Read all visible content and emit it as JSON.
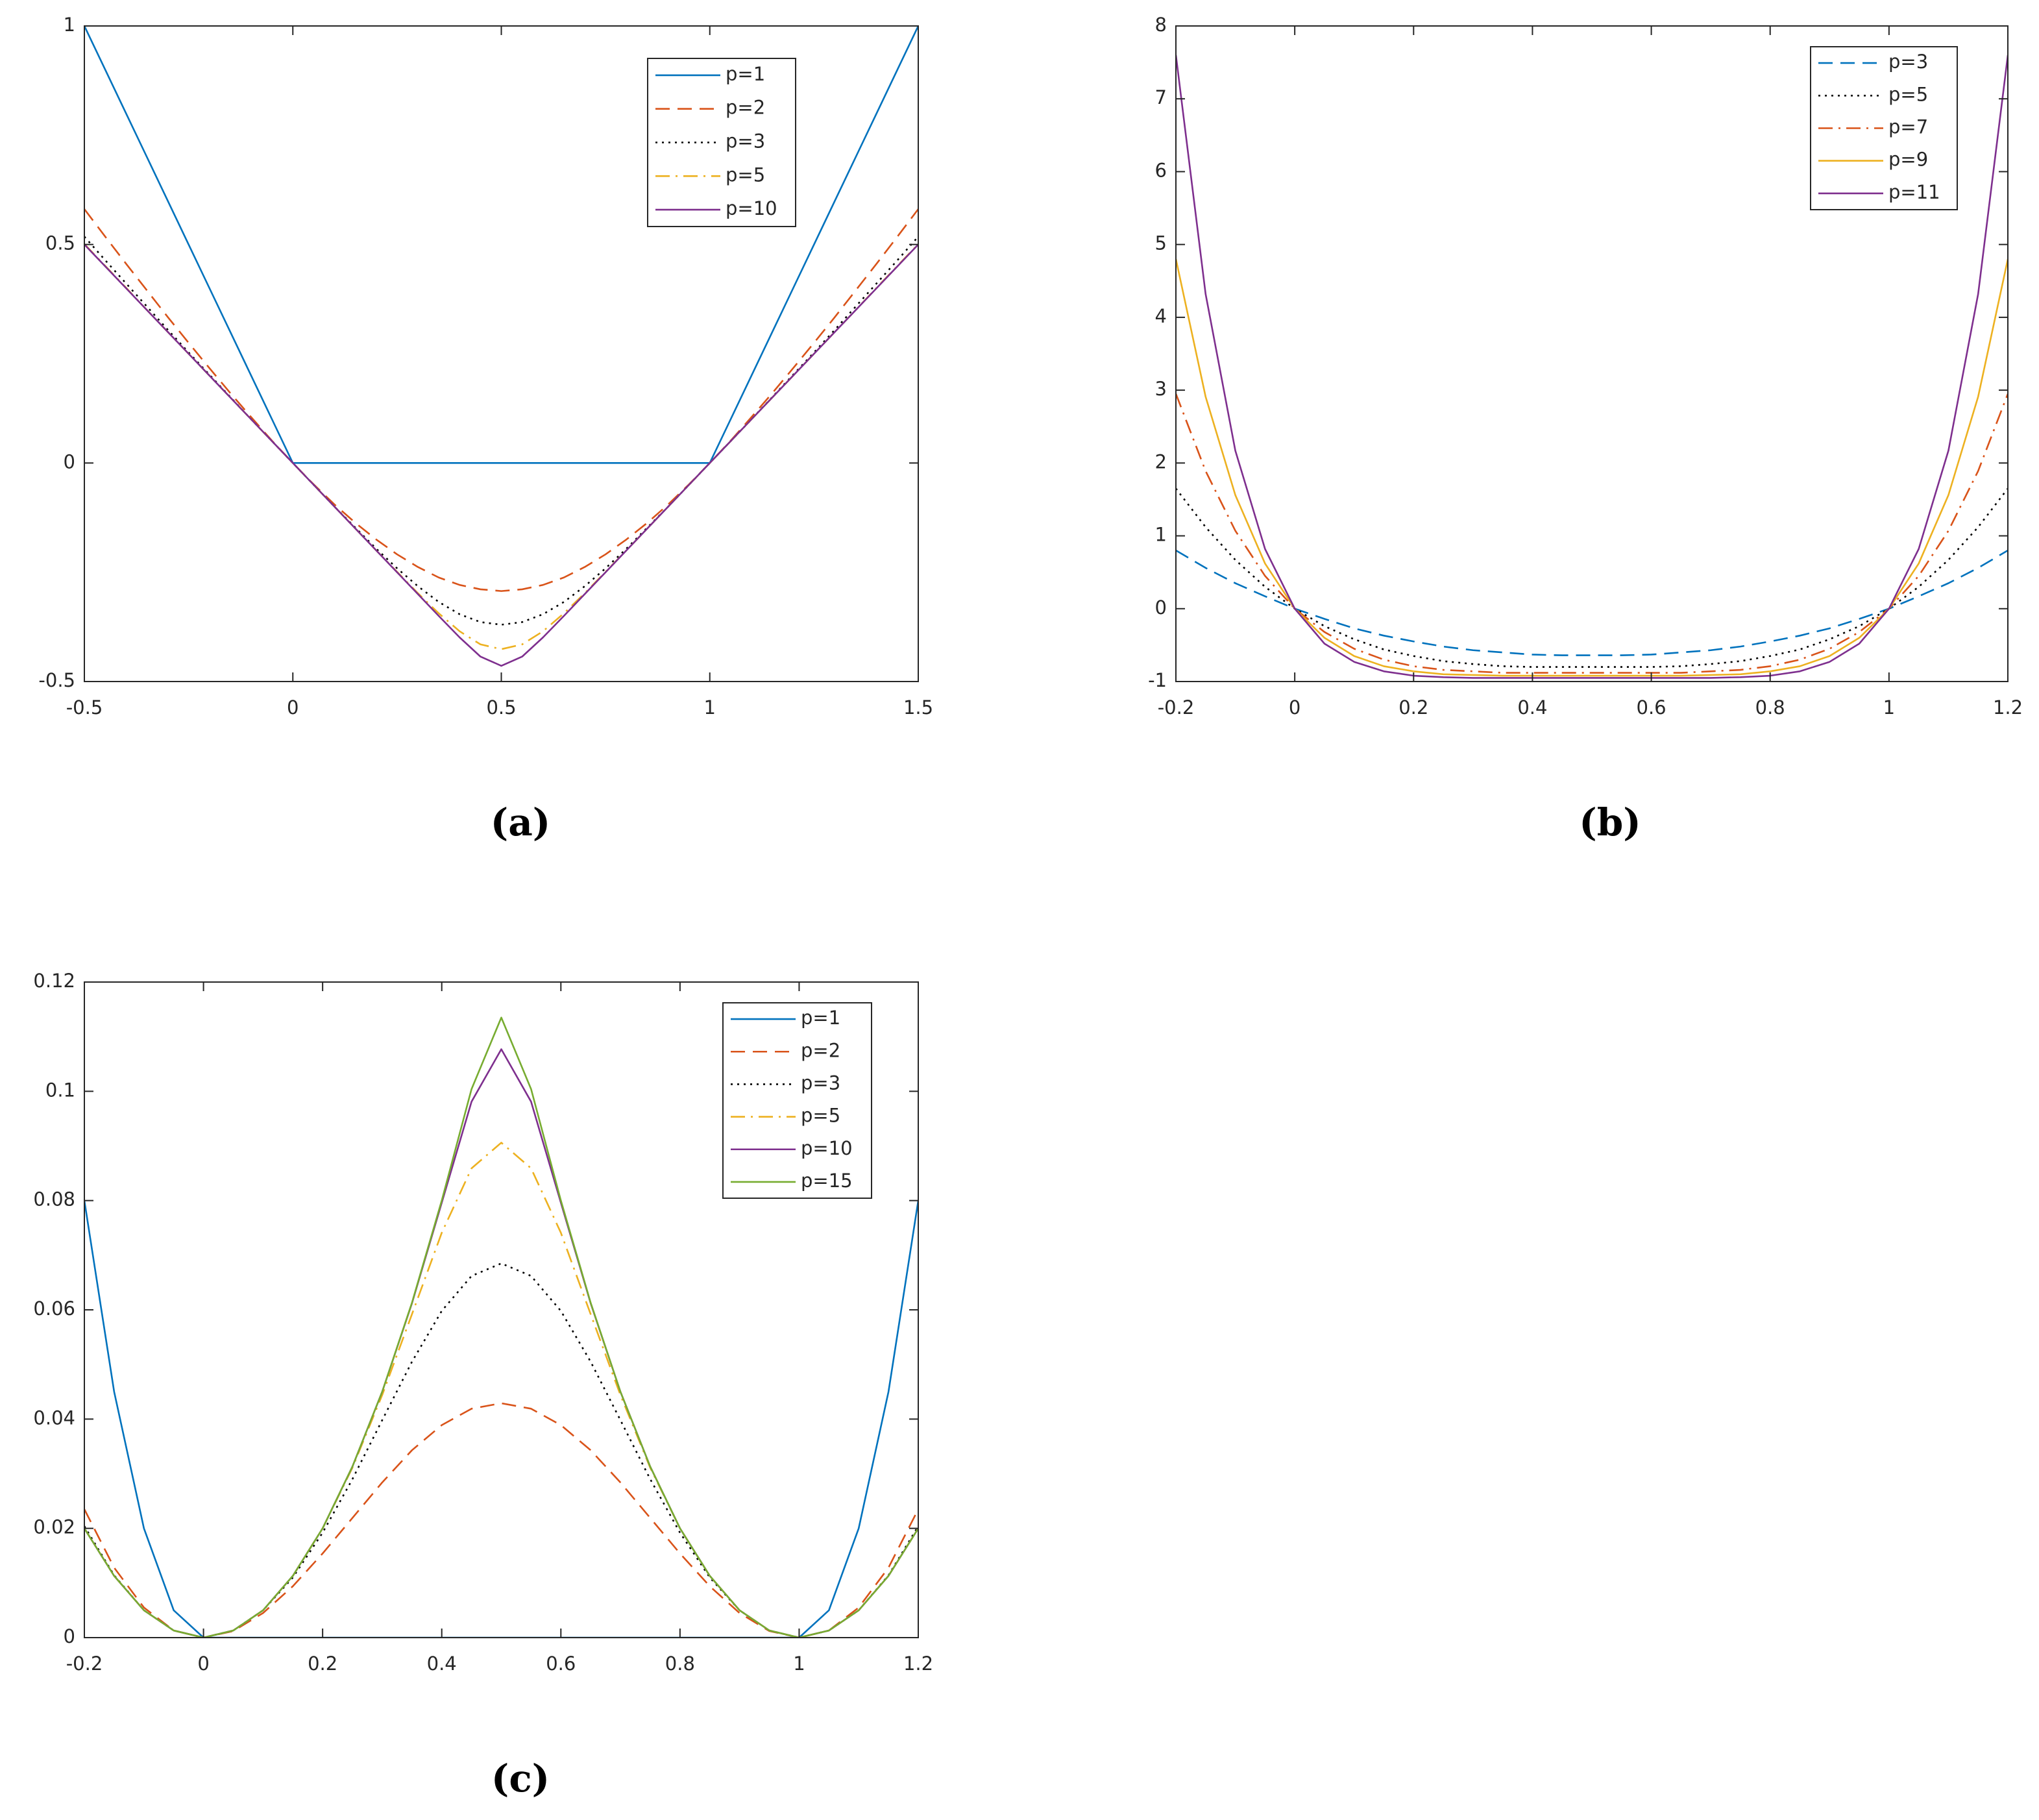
{
  "chart_data": [
    {
      "type": "line",
      "caption": "(a)",
      "legend": "northeast",
      "x": [
        -0.5,
        -0.45,
        -0.4,
        -0.35,
        -0.3,
        -0.25,
        -0.2,
        -0.15,
        -0.1,
        -0.05,
        0,
        0.05,
        0.1,
        0.15,
        0.2,
        0.25,
        0.3,
        0.35,
        0.4,
        0.45,
        0.5,
        0.55,
        0.6,
        0.65,
        0.7,
        0.75,
        0.8,
        0.85,
        0.9,
        0.95,
        1,
        1.05,
        1.1,
        1.15,
        1.2,
        1.25,
        1.3,
        1.35,
        1.4,
        1.45,
        1.5
      ],
      "xlim": [
        -0.5,
        1.5
      ],
      "xticks": [
        -0.5,
        0,
        0.5,
        1,
        1.5
      ],
      "ylim": [
        -0.5,
        1
      ],
      "yticks": [
        -0.5,
        0,
        0.5,
        1
      ],
      "series": [
        {
          "name": "p=1",
          "color": "#0072bd",
          "dash": "solid",
          "values": [
            1,
            0.9,
            0.8,
            0.7,
            0.6,
            0.5,
            0.4,
            0.3,
            0.2,
            0.1,
            0,
            0,
            0,
            0,
            0,
            0,
            0,
            0,
            0,
            0,
            0,
            0,
            0,
            0,
            0,
            0,
            0,
            0,
            0,
            0,
            0,
            0.1,
            0.2,
            0.3,
            0.4,
            0.5,
            0.6,
            0.7,
            0.8,
            0.9,
            1
          ]
        },
        {
          "name": "p=2",
          "color": "#d95319",
          "dash": "dashed",
          "values": [
            0.581,
            0.518,
            0.456,
            0.395,
            0.334,
            0.275,
            0.217,
            0.16,
            0.105,
            0.051,
            0,
            -0.049,
            -0.095,
            -0.137,
            -0.175,
            -0.209,
            -0.238,
            -0.262,
            -0.279,
            -0.289,
            -0.293,
            -0.289,
            -0.279,
            -0.262,
            -0.238,
            -0.209,
            -0.175,
            -0.137,
            -0.095,
            -0.049,
            0,
            0.051,
            0.105,
            0.16,
            0.217,
            0.275,
            0.334,
            0.395,
            0.456,
            0.518,
            0.581
          ]
        },
        {
          "name": "p=3",
          "color": "#000000",
          "dash": "dotted",
          "values": [
            0.518,
            0.464,
            0.411,
            0.358,
            0.305,
            0.253,
            0.202,
            0.151,
            0.1,
            0.05,
            0,
            -0.05,
            -0.1,
            -0.148,
            -0.196,
            -0.241,
            -0.282,
            -0.318,
            -0.346,
            -0.364,
            -0.37,
            -0.364,
            -0.346,
            -0.318,
            -0.282,
            -0.241,
            -0.196,
            -0.148,
            -0.1,
            -0.05,
            0,
            0.05,
            0.1,
            0.151,
            0.202,
            0.253,
            0.305,
            0.358,
            0.411,
            0.464,
            0.518
          ]
        },
        {
          "name": "p=5",
          "color": "#edb120",
          "dash": "dashdot",
          "values": [
            0.501,
            0.451,
            0.401,
            0.35,
            0.3,
            0.25,
            0.2,
            0.15,
            0.1,
            0.05,
            0,
            -0.05,
            -0.1,
            -0.15,
            -0.2,
            -0.249,
            -0.298,
            -0.344,
            -0.385,
            -0.415,
            -0.426,
            -0.415,
            -0.385,
            -0.344,
            -0.298,
            -0.249,
            -0.2,
            -0.15,
            -0.1,
            -0.05,
            0,
            0.05,
            0.1,
            0.15,
            0.2,
            0.25,
            0.3,
            0.35,
            0.401,
            0.451,
            0.501
          ]
        },
        {
          "name": "p=10",
          "color": "#7e2f8e",
          "dash": "solid",
          "values": [
            0.5,
            0.45,
            0.4,
            0.35,
            0.3,
            0.25,
            0.2,
            0.15,
            0.1,
            0.05,
            0,
            -0.05,
            -0.1,
            -0.15,
            -0.2,
            -0.25,
            -0.3,
            -0.35,
            -0.399,
            -0.443,
            -0.464,
            -0.443,
            -0.399,
            -0.35,
            -0.3,
            -0.25,
            -0.2,
            -0.15,
            -0.1,
            -0.05,
            0,
            0.05,
            0.1,
            0.15,
            0.2,
            0.25,
            0.3,
            0.35,
            0.4,
            0.45,
            0.5
          ]
        }
      ]
    },
    {
      "type": "line",
      "caption": "(b)",
      "legend": "northeast",
      "x": [
        -0.2,
        -0.15,
        -0.1,
        -0.05,
        0,
        0.05,
        0.1,
        0.15,
        0.2,
        0.25,
        0.3,
        0.35,
        0.4,
        0.45,
        0.5,
        0.55,
        0.6,
        0.65,
        0.7,
        0.75,
        0.8,
        0.85,
        0.9,
        0.95,
        1,
        1.05,
        1.1,
        1.15,
        1.2
      ],
      "xlim": [
        -0.2,
        1.2
      ],
      "xticks": [
        -0.2,
        0,
        0.2,
        0.4,
        0.6,
        0.8,
        1,
        1.2
      ],
      "ylim": [
        -1,
        8
      ],
      "yticks": [
        -1,
        0,
        1,
        2,
        3,
        4,
        5,
        6,
        7,
        8
      ],
      "series": [
        {
          "name": "p=3",
          "color": "#0072bd",
          "dash": "dashed",
          "values": [
            0.8,
            0.56,
            0.35,
            0.17,
            0,
            -0.14,
            -0.27,
            -0.37,
            -0.45,
            -0.52,
            -0.57,
            -0.6,
            -0.63,
            -0.64,
            -0.64,
            -0.64,
            -0.63,
            -0.6,
            -0.57,
            -0.52,
            -0.45,
            -0.37,
            -0.27,
            -0.14,
            0,
            0.17,
            0.35,
            0.56,
            0.8
          ]
        },
        {
          "name": "p=5",
          "color": "#000000",
          "dash": "dotted",
          "values": [
            1.65,
            1.12,
            0.67,
            0.3,
            0,
            -0.24,
            -0.42,
            -0.56,
            -0.65,
            -0.72,
            -0.76,
            -0.79,
            -0.8,
            -0.8,
            -0.8,
            -0.8,
            -0.8,
            -0.79,
            -0.76,
            -0.72,
            -0.65,
            -0.56,
            -0.42,
            -0.24,
            0,
            0.3,
            0.67,
            1.12,
            1.65
          ]
        },
        {
          "name": "p=7",
          "color": "#d95319",
          "dash": "dashdot",
          "values": [
            2.95,
            1.89,
            1.07,
            0.45,
            0,
            -0.32,
            -0.55,
            -0.7,
            -0.79,
            -0.84,
            -0.86,
            -0.88,
            -0.88,
            -0.88,
            -0.88,
            -0.88,
            -0.88,
            -0.88,
            -0.86,
            -0.84,
            -0.79,
            -0.7,
            -0.55,
            -0.32,
            0,
            0.45,
            1.07,
            1.89,
            2.95
          ]
        },
        {
          "name": "p=9",
          "color": "#edb120",
          "dash": "solid",
          "values": [
            4.8,
            2.91,
            1.56,
            0.62,
            0,
            -0.4,
            -0.65,
            -0.79,
            -0.86,
            -0.9,
            -0.91,
            -0.92,
            -0.92,
            -0.92,
            -0.92,
            -0.92,
            -0.92,
            -0.92,
            -0.91,
            -0.9,
            -0.86,
            -0.79,
            -0.65,
            -0.4,
            0,
            0.62,
            1.56,
            2.91,
            4.8
          ]
        },
        {
          "name": "p=11",
          "color": "#7e2f8e",
          "dash": "solid",
          "values": [
            7.6,
            4.32,
            2.17,
            0.82,
            0,
            -0.48,
            -0.73,
            -0.86,
            -0.92,
            -0.94,
            -0.95,
            -0.95,
            -0.95,
            -0.95,
            -0.95,
            -0.95,
            -0.95,
            -0.95,
            -0.95,
            -0.94,
            -0.92,
            -0.86,
            -0.73,
            -0.48,
            0,
            0.82,
            2.17,
            4.32,
            7.6
          ]
        }
      ]
    },
    {
      "type": "line",
      "caption": "(c)",
      "legend": "northeast",
      "x": [
        -0.2,
        -0.15,
        -0.1,
        -0.05,
        0,
        0.05,
        0.1,
        0.15,
        0.2,
        0.25,
        0.3,
        0.35,
        0.4,
        0.45,
        0.5,
        0.55,
        0.6,
        0.65,
        0.7,
        0.75,
        0.8,
        0.85,
        0.9,
        0.95,
        1,
        1.05,
        1.1,
        1.15,
        1.2
      ],
      "xlim": [
        -0.2,
        1.2
      ],
      "xticks": [
        -0.2,
        0,
        0.2,
        0.4,
        0.6,
        0.8,
        1,
        1.2
      ],
      "ylim": [
        0,
        0.12
      ],
      "yticks": [
        0,
        0.02,
        0.04,
        0.06,
        0.08,
        0.1,
        0.12
      ],
      "series": [
        {
          "name": "p=1",
          "color": "#0072bd",
          "dash": "solid",
          "values": [
            0.08,
            0.045,
            0.02,
            0.005,
            0,
            0,
            0,
            0,
            0,
            0,
            0,
            0,
            0,
            0,
            0,
            0,
            0,
            0,
            0,
            0,
            0,
            0,
            0,
            0,
            0,
            0.005,
            0.02,
            0.045,
            0.08
          ]
        },
        {
          "name": "p=2",
          "color": "#d95319",
          "dash": "dashed",
          "values": [
            0.0235,
            0.0128,
            0.0055,
            0.0013,
            0,
            0.0012,
            0.0045,
            0.0094,
            0.0154,
            0.0219,
            0.0284,
            0.0343,
            0.0389,
            0.0419,
            0.0429,
            0.0419,
            0.0389,
            0.0343,
            0.0284,
            0.0219,
            0.0154,
            0.0094,
            0.0045,
            0.0012,
            0,
            0.0013,
            0.0055,
            0.0128,
            0.0235
          ]
        },
        {
          "name": "p=3",
          "color": "#000000",
          "dash": "dotted",
          "values": [
            0.0204,
            0.0114,
            0.005,
            0.0013,
            0,
            0.0013,
            0.005,
            0.011,
            0.0192,
            0.029,
            0.0398,
            0.0505,
            0.0598,
            0.0662,
            0.0685,
            0.0662,
            0.0598,
            0.0505,
            0.0398,
            0.029,
            0.0192,
            0.011,
            0.005,
            0.0013,
            0,
            0.0013,
            0.005,
            0.0114,
            0.0204
          ]
        },
        {
          "name": "p=5",
          "color": "#edb120",
          "dash": "dashdot",
          "values": [
            0.02,
            0.0113,
            0.005,
            0.0013,
            0,
            0.0013,
            0.005,
            0.0113,
            0.02,
            0.0311,
            0.0444,
            0.0592,
            0.0741,
            0.0859,
            0.0906,
            0.0859,
            0.0741,
            0.0592,
            0.0444,
            0.0311,
            0.02,
            0.0113,
            0.005,
            0.0013,
            0,
            0.0013,
            0.005,
            0.0113,
            0.02
          ]
        },
        {
          "name": "p=10",
          "color": "#7e2f8e",
          "dash": "solid",
          "values": [
            0.02,
            0.0113,
            0.005,
            0.0013,
            0,
            0.0013,
            0.005,
            0.0113,
            0.02,
            0.0313,
            0.045,
            0.0612,
            0.0796,
            0.0981,
            0.1077,
            0.0981,
            0.0796,
            0.0612,
            0.045,
            0.0313,
            0.02,
            0.0113,
            0.005,
            0.0013,
            0,
            0.0013,
            0.005,
            0.0113,
            0.02
          ]
        },
        {
          "name": "p=15",
          "color": "#77ac30",
          "dash": "solid",
          "values": [
            0.02,
            0.0113,
            0.005,
            0.0013,
            0,
            0.0013,
            0.005,
            0.0113,
            0.02,
            0.0313,
            0.045,
            0.0613,
            0.08,
            0.1004,
            0.1135,
            0.1004,
            0.08,
            0.0613,
            0.045,
            0.0313,
            0.02,
            0.0113,
            0.005,
            0.0013,
            0,
            0.0013,
            0.005,
            0.0113,
            0.02
          ]
        }
      ]
    }
  ]
}
